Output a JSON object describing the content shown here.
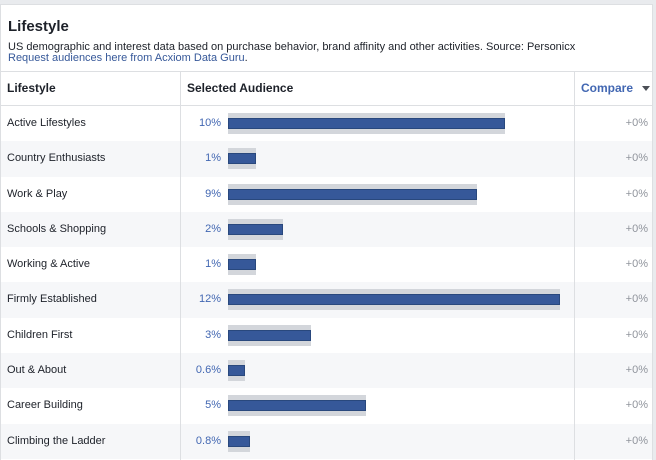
{
  "section": {
    "title": "Lifestyle",
    "description": "US demographic and interest data based on purchase behavior, brand affinity and other activities. Source: Personicx",
    "link_text": "Request audiences here from Acxiom Data Guru",
    "link_suffix": "."
  },
  "table": {
    "col_lifestyle": "Lifestyle",
    "col_audience": "Selected Audience",
    "col_compare": "Compare",
    "rows": [
      {
        "name": "Active Lifestyles",
        "pct": "10%",
        "value": 10,
        "compare": "+0%"
      },
      {
        "name": "Country Enthusiasts",
        "pct": "1%",
        "value": 1,
        "compare": "+0%"
      },
      {
        "name": "Work & Play",
        "pct": "9%",
        "value": 9,
        "compare": "+0%"
      },
      {
        "name": "Schools & Shopping",
        "pct": "2%",
        "value": 2,
        "compare": "+0%"
      },
      {
        "name": "Working & Active",
        "pct": "1%",
        "value": 1,
        "compare": "+0%"
      },
      {
        "name": "Firmly Established",
        "pct": "12%",
        "value": 12,
        "compare": "+0%"
      },
      {
        "name": "Children First",
        "pct": "3%",
        "value": 3,
        "compare": "+0%"
      },
      {
        "name": "Out & About",
        "pct": "0.6%",
        "value": 0.6,
        "compare": "+0%"
      },
      {
        "name": "Career Building",
        "pct": "5%",
        "value": 5,
        "compare": "+0%"
      },
      {
        "name": "Climbing the Ladder",
        "pct": "0.8%",
        "value": 0.8,
        "compare": "+0%"
      }
    ]
  },
  "colors": {
    "bar": "#365899",
    "bar_background": "#d3d6db",
    "link": "#4267b2"
  }
}
